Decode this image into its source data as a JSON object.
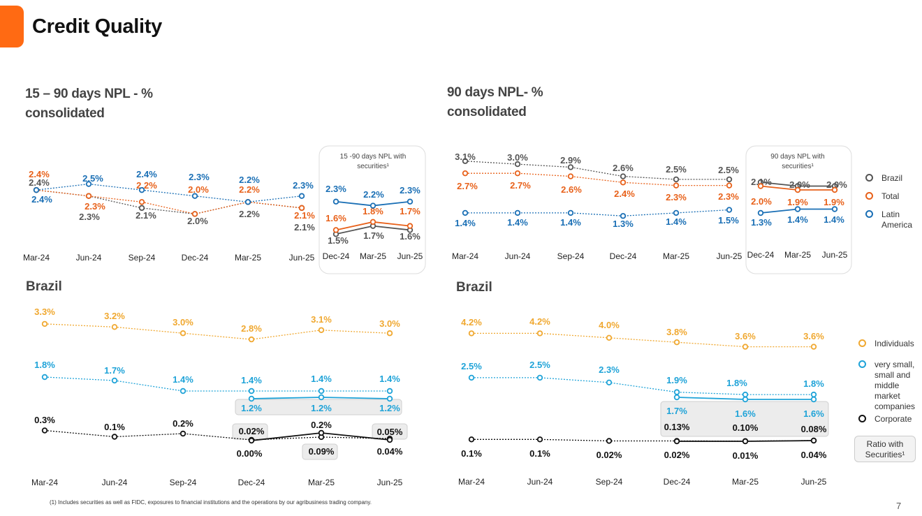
{
  "page": {
    "title": "Credit Quality",
    "page_number": "7"
  },
  "footnote": "(1) Includes securities as well as FIDC, exposures to financial institutions and the operations by our agribusiness trading company.",
  "colors": {
    "accent": "#ff6a13",
    "brazil": "#555555",
    "total": "#e8611a",
    "latin_america": "#1a6fb5",
    "individuals": "#f0a830",
    "smes": "#1fa3d8",
    "corporate": "#111111"
  },
  "legend_top": {
    "items": [
      {
        "label": "Brazil",
        "color": "#555555"
      },
      {
        "label": "Total",
        "color": "#e8611a"
      },
      {
        "label": "Latin America",
        "color": "#1a6fb5"
      }
    ]
  },
  "legend_bottom": {
    "items": [
      {
        "label": "Individuals",
        "color": "#f0a830"
      },
      {
        "label": "very small, small and middle market companies",
        "color": "#1fa3d8"
      },
      {
        "label": "Corporate",
        "color": "#111111"
      }
    ],
    "ratio_box": "Ratio with Securities¹"
  },
  "sections": {
    "npl15_title": "15 – 90 days NPL - % consolidated",
    "npl90_title": "90 days NPL- % consolidated",
    "brazil_left_title": "Brazil",
    "brazil_right_title": "Brazil"
  },
  "chart_data": [
    {
      "id": "npl15-consolidated",
      "type": "line",
      "categories": [
        "Mar-24",
        "Jun-24",
        "Sep-24",
        "Dec-24",
        "Mar-25",
        "Jun-25"
      ],
      "series": [
        {
          "name": "Brazil",
          "values": [
            2.4,
            2.3,
            2.1,
            2.0,
            2.2,
            2.1
          ]
        },
        {
          "name": "Total",
          "values": [
            2.4,
            2.3,
            2.2,
            2.0,
            2.2,
            2.1
          ]
        },
        {
          "name": "Latin America",
          "values": [
            2.4,
            2.5,
            2.4,
            2.3,
            2.2,
            2.3
          ]
        }
      ],
      "labels": [
        [
          "2.4%",
          "2.3%",
          "2.1%",
          "2.0%",
          "2.2%",
          "2.1%"
        ],
        [
          "2.4%",
          "2.3%",
          "2.2%",
          "2.0%",
          "2.2%",
          "2.1%"
        ],
        [
          "2.4%",
          "2.5%",
          "2.4%",
          "2.3%",
          "2.2%",
          "2.3%"
        ]
      ]
    },
    {
      "id": "npl15-with-securities",
      "type": "line",
      "title": "15 -90 days NPL with securities¹",
      "categories": [
        "Dec-24",
        "Mar-25",
        "Jun-25"
      ],
      "series": [
        {
          "name": "Brazil",
          "values": [
            1.5,
            1.7,
            1.6
          ]
        },
        {
          "name": "Total",
          "values": [
            1.6,
            1.8,
            1.7
          ]
        },
        {
          "name": "Latin America",
          "values": [
            2.3,
            2.2,
            2.3
          ]
        }
      ],
      "labels": [
        [
          "1.5%",
          "1.7%",
          "1.6%"
        ],
        [
          "1.6%",
          "1.8%",
          "1.7%"
        ],
        [
          "2.3%",
          "2.2%",
          "2.3%"
        ]
      ]
    },
    {
      "id": "npl90-consolidated",
      "type": "line",
      "categories": [
        "Mar-24",
        "Jun-24",
        "Sep-24",
        "Dec-24",
        "Mar-25",
        "Jun-25"
      ],
      "series": [
        {
          "name": "Brazil",
          "values": [
            3.1,
            3.0,
            2.9,
            2.6,
            2.5,
            2.5
          ]
        },
        {
          "name": "Total",
          "values": [
            2.7,
            2.7,
            2.6,
            2.4,
            2.3,
            2.3
          ]
        },
        {
          "name": "Latin America",
          "values": [
            1.4,
            1.4,
            1.4,
            1.3,
            1.4,
            1.5
          ]
        }
      ],
      "labels": [
        [
          "3.1%",
          "3.0%",
          "2.9%",
          "2.6%",
          "2.5%",
          "2.5%"
        ],
        [
          "2.7%",
          "2.7%",
          "2.6%",
          "2.4%",
          "2.3%",
          "2.3%"
        ],
        [
          "1.4%",
          "1.4%",
          "1.4%",
          "1.3%",
          "1.4%",
          "1.5%"
        ]
      ]
    },
    {
      "id": "npl90-with-securities",
      "type": "line",
      "title": "90 days NPL with securities¹",
      "categories": [
        "Dec-24",
        "Mar-25",
        "Jun-25"
      ],
      "series": [
        {
          "name": "Brazil",
          "values": [
            2.1,
            2.0,
            2.0
          ]
        },
        {
          "name": "Total",
          "values": [
            2.0,
            1.9,
            1.9
          ]
        },
        {
          "name": "Latin America",
          "values": [
            1.3,
            1.4,
            1.4
          ]
        }
      ],
      "labels": [
        [
          "2.1%",
          "2.0%",
          "2.0%"
        ],
        [
          "2.0%",
          "1.9%",
          "1.9%"
        ],
        [
          "1.3%",
          "1.4%",
          "1.4%"
        ]
      ]
    },
    {
      "id": "npl15-brazil",
      "type": "line",
      "categories": [
        "Mar-24",
        "Jun-24",
        "Sep-24",
        "Dec-24",
        "Mar-25",
        "Jun-25"
      ],
      "series": [
        {
          "name": "Individuals",
          "values": [
            3.3,
            3.2,
            3.0,
            2.8,
            3.1,
            3.0
          ]
        },
        {
          "name": "very small, small and middle market companies",
          "values": [
            1.8,
            1.7,
            1.4,
            1.4,
            1.4,
            1.4
          ]
        },
        {
          "name": "Corporate",
          "values": [
            0.3,
            0.1,
            0.2,
            0.0,
            0.09,
            0.04
          ]
        }
      ],
      "labels": [
        [
          "3.3%",
          "3.2%",
          "3.0%",
          "2.8%",
          "3.1%",
          "3.0%"
        ],
        [
          "1.8%",
          "1.7%",
          "1.4%",
          "1.4%",
          "1.4%",
          "1.4%"
        ],
        [
          "0.3%",
          "0.1%",
          "0.2%",
          "0.00%",
          "0.09%",
          "0.04%"
        ]
      ],
      "ratio_with_securities": [
        {
          "name": "very small, small and middle market companies",
          "categories": [
            "Dec-24",
            "Mar-25",
            "Jun-25"
          ],
          "values": [
            1.2,
            1.2,
            1.2
          ],
          "labels": [
            "1.2%",
            "1.2%",
            "1.2%"
          ]
        },
        {
          "name": "Corporate",
          "categories": [
            "Dec-24",
            "Mar-25",
            "Jun-25"
          ],
          "values": [
            0.02,
            0.2,
            0.05
          ],
          "labels": [
            "0.02%",
            "0.2%",
            "0.05%"
          ]
        }
      ]
    },
    {
      "id": "npl90-brazil",
      "type": "line",
      "categories": [
        "Mar-24",
        "Jun-24",
        "Sep-24",
        "Dec-24",
        "Mar-25",
        "Jun-25"
      ],
      "series": [
        {
          "name": "Individuals",
          "values": [
            4.2,
            4.2,
            4.0,
            3.8,
            3.6,
            3.6
          ]
        },
        {
          "name": "very small, small and middle market companies",
          "values": [
            2.5,
            2.5,
            2.3,
            1.9,
            1.8,
            1.8
          ]
        },
        {
          "name": "Corporate",
          "values": [
            0.1,
            0.1,
            0.02,
            0.02,
            0.01,
            0.04
          ]
        }
      ],
      "labels": [
        [
          "4.2%",
          "4.2%",
          "4.0%",
          "3.8%",
          "3.6%",
          "3.6%"
        ],
        [
          "2.5%",
          "2.5%",
          "2.3%",
          "1.9%",
          "1.8%",
          "1.8%"
        ],
        [
          "0.1%",
          "0.1%",
          "0.02%",
          "0.02%",
          "0.01%",
          "0.04%"
        ]
      ],
      "ratio_with_securities": [
        {
          "name": "very small, small and middle market companies",
          "categories": [
            "Dec-24",
            "Mar-25",
            "Jun-25"
          ],
          "values": [
            1.7,
            1.6,
            1.6
          ],
          "labels": [
            "1.7%",
            "1.6%",
            "1.6%"
          ]
        },
        {
          "name": "Corporate",
          "categories": [
            "Dec-24",
            "Mar-25",
            "Jun-25"
          ],
          "values": [
            0.13,
            0.1,
            0.08
          ],
          "labels": [
            "0.13%",
            "0.10%",
            "0.08%"
          ]
        }
      ]
    }
  ]
}
